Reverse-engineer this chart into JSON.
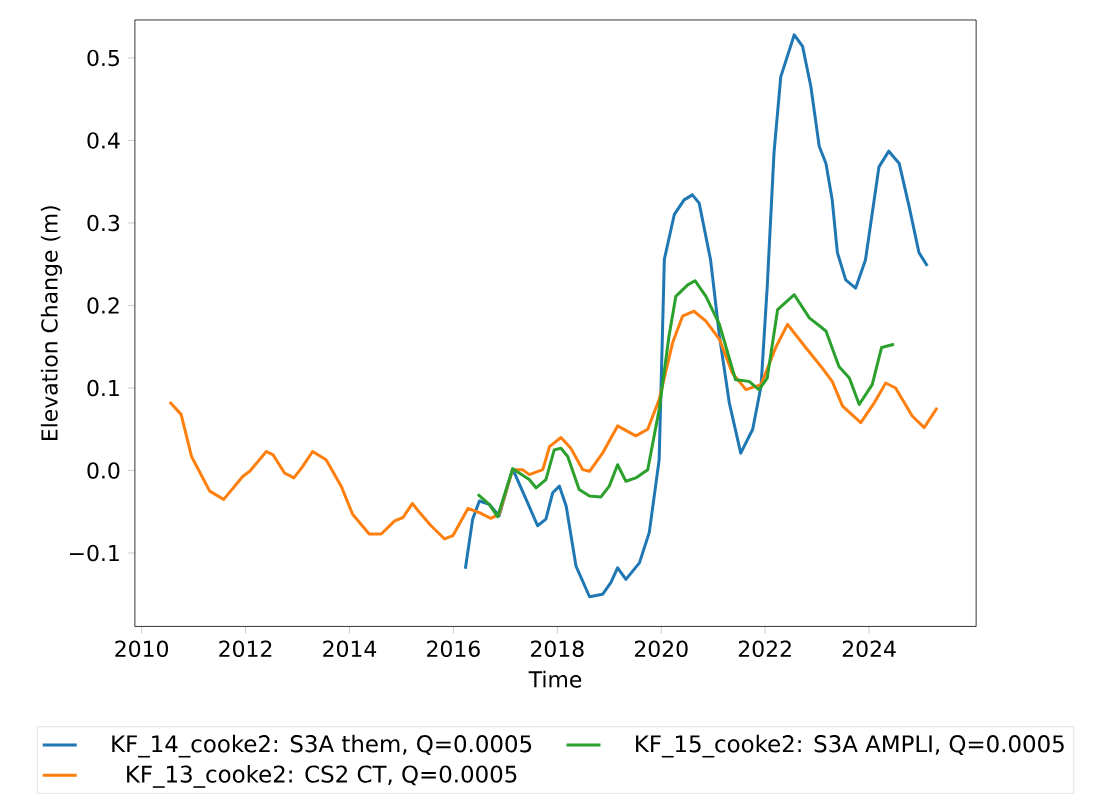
{
  "chart_data": {
    "type": "line",
    "xlabel": "Time",
    "ylabel": "Elevation Change (m)",
    "xlim": [
      2009.87,
      2026.06
    ],
    "ylim": [
      -0.189,
      0.546
    ],
    "xticks": [
      2010,
      2012,
      2014,
      2016,
      2018,
      2020,
      2022,
      2024
    ],
    "yticks": [
      {
        "value": -0.1,
        "label": "−0.1"
      },
      {
        "value": 0.0,
        "label": "0.0"
      },
      {
        "value": 0.1,
        "label": "0.1"
      },
      {
        "value": 0.2,
        "label": "0.2"
      },
      {
        "value": 0.3,
        "label": "0.3"
      },
      {
        "value": 0.4,
        "label": "0.4"
      },
      {
        "value": 0.5,
        "label": "0.5"
      }
    ],
    "legend": "bottom",
    "line_style": "solid",
    "series": [
      {
        "name": "KF_14_cooke2: S3A them, Q=0.0005",
        "color": "#1f77b4",
        "x": [
          2016.23,
          2016.37,
          2016.5,
          2016.69,
          2016.88,
          2017.14,
          2017.4,
          2017.62,
          2017.78,
          2017.91,
          2018.04,
          2018.17,
          2018.36,
          2018.62,
          2018.87,
          2019.03,
          2019.16,
          2019.32,
          2019.58,
          2019.77,
          2019.96,
          2020.06,
          2020.25,
          2020.44,
          2020.6,
          2020.73,
          2020.95,
          2021.12,
          2021.31,
          2021.53,
          2021.76,
          2021.92,
          2022.04,
          2022.17,
          2022.3,
          2022.56,
          2022.72,
          2022.88,
          2023.04,
          2023.17,
          2023.29,
          2023.39,
          2023.55,
          2023.74,
          2023.93,
          2024.19,
          2024.38,
          2024.58,
          2024.77,
          2024.96,
          2025.12
        ],
        "values": [
          -0.119,
          -0.059,
          -0.037,
          -0.041,
          -0.055,
          0.002,
          -0.035,
          -0.067,
          -0.059,
          -0.027,
          -0.019,
          -0.043,
          -0.116,
          -0.153,
          -0.15,
          -0.136,
          -0.118,
          -0.132,
          -0.112,
          -0.075,
          0.013,
          0.256,
          0.31,
          0.328,
          0.334,
          0.324,
          0.255,
          0.163,
          0.082,
          0.021,
          0.05,
          0.102,
          0.223,
          0.385,
          0.477,
          0.528,
          0.514,
          0.465,
          0.393,
          0.372,
          0.328,
          0.264,
          0.231,
          0.221,
          0.255,
          0.368,
          0.387,
          0.372,
          0.32,
          0.264,
          0.248
        ]
      },
      {
        "name": "KF_13_cooke2: CS2 CT, Q=0.0005",
        "color": "#ff7f0e",
        "x": [
          2010.54,
          2010.76,
          2010.96,
          2011.31,
          2011.58,
          2011.95,
          2012.08,
          2012.4,
          2012.53,
          2012.75,
          2012.93,
          2013.1,
          2013.29,
          2013.55,
          2013.84,
          2014.06,
          2014.38,
          2014.61,
          2014.87,
          2015.03,
          2015.21,
          2015.35,
          2015.57,
          2015.83,
          2015.99,
          2016.28,
          2016.5,
          2016.72,
          2016.88,
          2017.14,
          2017.33,
          2017.46,
          2017.72,
          2017.85,
          2018.07,
          2018.26,
          2018.49,
          2018.62,
          2018.87,
          2019.16,
          2019.51,
          2019.74,
          2019.96,
          2020.22,
          2020.41,
          2020.63,
          2020.86,
          2021.12,
          2021.37,
          2021.63,
          2021.92,
          2022.21,
          2022.43,
          2022.78,
          2023.1,
          2023.29,
          2023.49,
          2023.84,
          2024.1,
          2024.32,
          2024.51,
          2024.83,
          2025.06,
          2025.31
        ],
        "values": [
          0.083,
          0.068,
          0.017,
          -0.025,
          -0.035,
          -0.007,
          -0.001,
          0.023,
          0.019,
          -0.003,
          -0.009,
          0.005,
          0.023,
          0.013,
          -0.019,
          -0.053,
          -0.077,
          -0.077,
          -0.061,
          -0.057,
          -0.04,
          -0.051,
          -0.067,
          -0.083,
          -0.079,
          -0.046,
          -0.051,
          -0.058,
          -0.053,
          0.001,
          0.001,
          -0.005,
          0.001,
          0.029,
          0.04,
          0.027,
          0.001,
          -0.001,
          0.021,
          0.054,
          0.042,
          0.05,
          0.086,
          0.155,
          0.187,
          0.193,
          0.181,
          0.159,
          0.118,
          0.098,
          0.104,
          0.15,
          0.177,
          0.149,
          0.124,
          0.108,
          0.078,
          0.058,
          0.082,
          0.106,
          0.1,
          0.066,
          0.052,
          0.076
        ]
      },
      {
        "name": "KF_15_cooke2: S3A AMPLI, Q=0.0005",
        "color": "#2ca02c",
        "x": [
          2016.47,
          2016.69,
          2016.85,
          2017.14,
          2017.46,
          2017.59,
          2017.78,
          2017.94,
          2018.07,
          2018.2,
          2018.42,
          2018.62,
          2018.84,
          2019.0,
          2019.16,
          2019.32,
          2019.51,
          2019.74,
          2019.96,
          2020.15,
          2020.28,
          2020.51,
          2020.65,
          2020.86,
          2021.12,
          2021.43,
          2021.69,
          2021.88,
          2022.04,
          2022.24,
          2022.56,
          2022.85,
          2023.17,
          2023.42,
          2023.62,
          2023.81,
          2024.06,
          2024.24,
          2024.48
        ],
        "values": [
          -0.029,
          -0.041,
          -0.056,
          0.002,
          -0.011,
          -0.021,
          -0.011,
          0.025,
          0.027,
          0.017,
          -0.023,
          -0.031,
          -0.032,
          -0.019,
          0.007,
          -0.013,
          -0.009,
          0.001,
          0.074,
          0.163,
          0.211,
          0.225,
          0.23,
          0.211,
          0.177,
          0.11,
          0.108,
          0.098,
          0.112,
          0.195,
          0.213,
          0.185,
          0.169,
          0.126,
          0.112,
          0.08,
          0.104,
          0.149,
          0.153
        ]
      }
    ]
  }
}
